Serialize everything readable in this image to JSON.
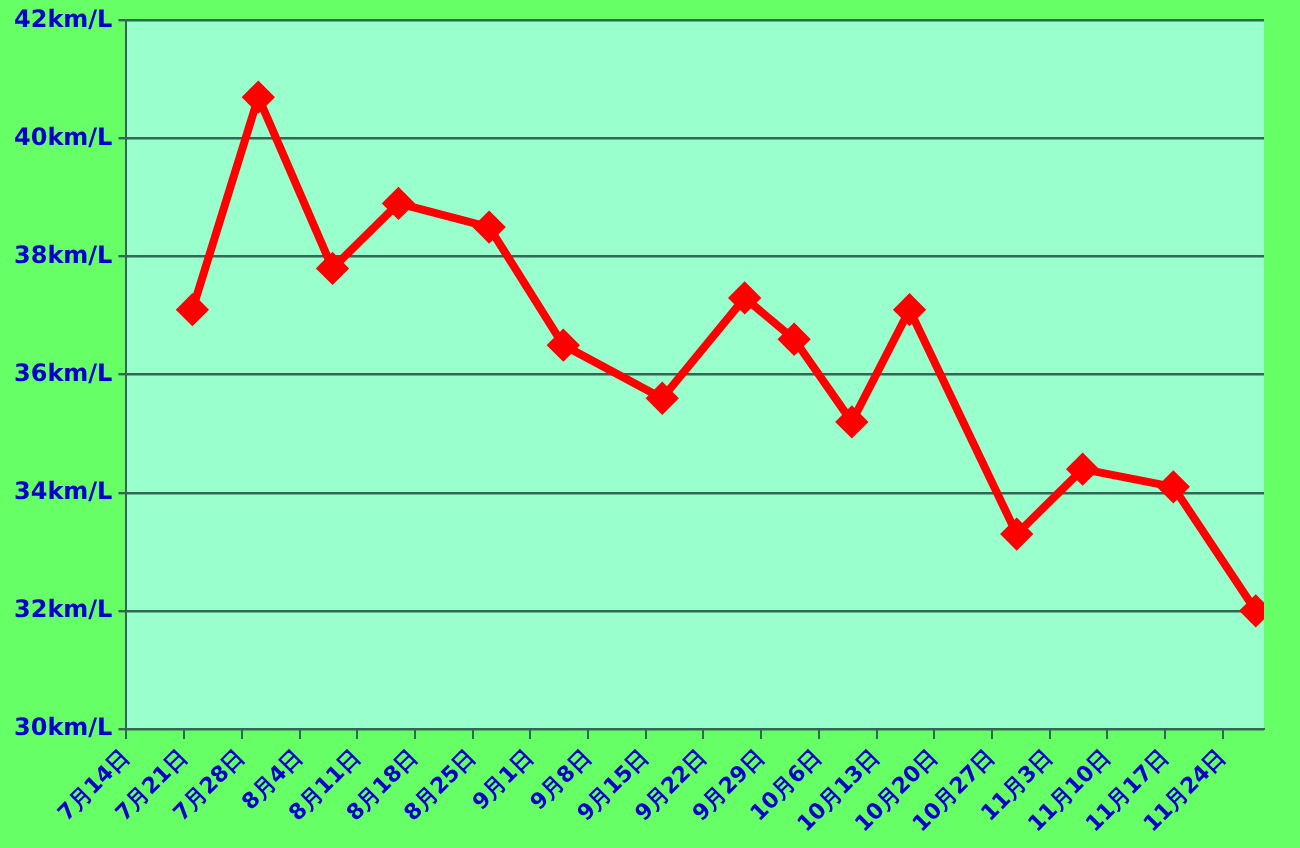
{
  "chart_data": {
    "type": "line",
    "x": [
      "--07-22",
      "--07-30",
      "--08-08",
      "--08-16",
      "--08-27",
      "--09-05",
      "--09-17",
      "--09-27",
      "--10-03",
      "--10-10",
      "--10-17",
      "--10-30",
      "--11-07",
      "--11-18",
      "--11-28"
    ],
    "series": [
      {
        "color": "#ff0000",
        "values": [
          37.1,
          40.7,
          37.8,
          38.9,
          38.5,
          36.5,
          35.6,
          37.3,
          36.6,
          35.2,
          37.1,
          33.3,
          34.4,
          34.1,
          32.0
        ]
      }
    ],
    "xlim": [
      "--07-14",
      "--11-29"
    ],
    "xticks": [
      {
        "value": "--07-14",
        "label": "7月14日"
      },
      {
        "value": "--07-21",
        "label": "7月21日"
      },
      {
        "value": "--07-28",
        "label": "7月28日"
      },
      {
        "value": "--08-04",
        "label": "8月4日"
      },
      {
        "value": "--08-11",
        "label": "8月11日"
      },
      {
        "value": "--08-18",
        "label": "8月18日"
      },
      {
        "value": "--08-25",
        "label": "8月25日"
      },
      {
        "value": "--09-01",
        "label": "9月1日"
      },
      {
        "value": "--09-08",
        "label": "9月8日"
      },
      {
        "value": "--09-15",
        "label": "9月15日"
      },
      {
        "value": "--09-22",
        "label": "9月22日"
      },
      {
        "value": "--09-29",
        "label": "9月29日"
      },
      {
        "value": "--10-06",
        "label": "10月6日"
      },
      {
        "value": "--10-13",
        "label": "10月13日"
      },
      {
        "value": "--10-20",
        "label": "10月20日"
      },
      {
        "value": "--10-27",
        "label": "10月27日"
      },
      {
        "value": "--11-03",
        "label": "11月3日"
      },
      {
        "value": "--11-10",
        "label": "11月10日"
      },
      {
        "value": "--11-17",
        "label": "11月17日"
      },
      {
        "value": "--11-24",
        "label": "11月24日"
      }
    ],
    "ylim": [
      30,
      42
    ],
    "yticks": [
      {
        "value": 30,
        "label": "30km/L"
      },
      {
        "value": 32,
        "label": "32km/L"
      },
      {
        "value": 34,
        "label": "34km/L"
      },
      {
        "value": 36,
        "label": "36km/L"
      },
      {
        "value": 38,
        "label": "38km/L"
      },
      {
        "value": 40,
        "label": "40km/L"
      },
      {
        "value": 42,
        "label": "42km/L"
      }
    ],
    "grid": "y",
    "legend": false,
    "marker": "diamond",
    "line_style": "solid"
  }
}
